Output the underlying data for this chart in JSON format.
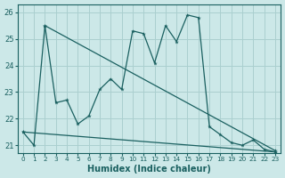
{
  "xlabel": "Humidex (Indice chaleur)",
  "background_color": "#cce8e8",
  "grid_color": "#aacfcf",
  "line_color": "#1a6060",
  "xlim": [
    -0.5,
    23.5
  ],
  "ylim": [
    20.7,
    26.3
  ],
  "yticks": [
    21,
    22,
    23,
    24,
    25,
    26
  ],
  "xticks": [
    0,
    1,
    2,
    3,
    4,
    5,
    6,
    7,
    8,
    9,
    10,
    11,
    12,
    13,
    14,
    15,
    16,
    17,
    18,
    19,
    20,
    21,
    22,
    23
  ],
  "series1_x": [
    0,
    1,
    2,
    3,
    4,
    5,
    6,
    7,
    8,
    9,
    10,
    11,
    12,
    13,
    14,
    15,
    16,
    17,
    18,
    19,
    20,
    21,
    22,
    23
  ],
  "series1_y": [
    21.5,
    21.0,
    25.5,
    22.6,
    22.7,
    21.8,
    22.1,
    23.1,
    23.5,
    23.1,
    25.3,
    25.2,
    24.1,
    25.5,
    24.9,
    25.9,
    25.8,
    21.7,
    21.4,
    21.1,
    21.0,
    21.2,
    20.85,
    20.75
  ],
  "series2_x": [
    2,
    23
  ],
  "series2_y": [
    25.5,
    20.8
  ],
  "series3_x": [
    0,
    23
  ],
  "series3_y": [
    21.5,
    20.75
  ],
  "figsize": [
    3.2,
    2.0
  ],
  "dpi": 100
}
